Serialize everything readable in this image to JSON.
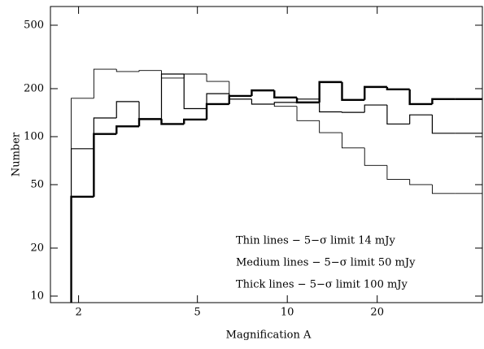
{
  "chart_data": {
    "type": "histogram",
    "xlabel": "Magnification A",
    "ylabel": "Number",
    "bins": [
      1.89,
      2.25,
      2.68,
      3.19,
      3.79,
      4.51,
      5.37,
      6.39,
      7.6,
      9.05,
      10.77,
      12.81,
      15.25,
      18.15,
      21.59,
      25.7,
      30.58,
      36.39,
      45
    ],
    "series": [
      {
        "name": "Thin lines",
        "color": "#000000",
        "linewidth": 0.9,
        "values": [
          174,
          265,
          256,
          260,
          233,
          247,
          222,
          172,
          160,
          155,
          126,
          106,
          85,
          66,
          54,
          50,
          44,
          44
        ]
      },
      {
        "name": "Medium lines",
        "color": "#000000",
        "linewidth": 1.2,
        "values": [
          84,
          131,
          166,
          128,
          247,
          150,
          186,
          172,
          160,
          164,
          172,
          143,
          142,
          158,
          120,
          137,
          105,
          105
        ]
      },
      {
        "name": "Thick lines",
        "color": "#000000",
        "linewidth": 2.4,
        "values": [
          42,
          104,
          116,
          129,
          120,
          128,
          160,
          180,
          195,
          176,
          164,
          220,
          170,
          205,
          198,
          160,
          172,
          172
        ]
      }
    ],
    "xlim": [
      1.61,
      45
    ],
    "ylim": [
      9.1,
      655
    ],
    "xscale": "log",
    "yscale": "log",
    "xticks": [
      2,
      5,
      10,
      20
    ],
    "yticks": [
      10,
      20,
      50,
      100,
      200,
      500
    ],
    "annotations": [
      "Thin lines − 5−σ limit 14 mJy",
      "Medium lines − 5−σ limit 50 mJy",
      "Thick lines − 5−σ limit 100 mJy"
    ]
  }
}
